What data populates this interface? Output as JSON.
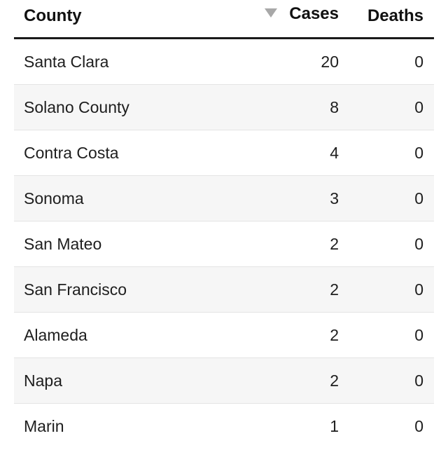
{
  "table": {
    "headers": {
      "county": "County",
      "cases": "Cases",
      "deaths": "Deaths"
    },
    "sort": {
      "column": "cases",
      "direction": "descending",
      "icon": "sort-desc-icon"
    },
    "rows": [
      {
        "county": "Santa Clara",
        "cases": "20",
        "deaths": "0"
      },
      {
        "county": "Solano County",
        "cases": "8",
        "deaths": "0"
      },
      {
        "county": "Contra Costa",
        "cases": "4",
        "deaths": "0"
      },
      {
        "county": "Sonoma",
        "cases": "3",
        "deaths": "0"
      },
      {
        "county": "San Mateo",
        "cases": "2",
        "deaths": "0"
      },
      {
        "county": "San Francisco",
        "cases": "2",
        "deaths": "0"
      },
      {
        "county": "Alameda",
        "cases": "2",
        "deaths": "0"
      },
      {
        "county": "Napa",
        "cases": "2",
        "deaths": "0"
      },
      {
        "county": "Marin",
        "cases": "1",
        "deaths": "0"
      }
    ]
  },
  "colors": {
    "header_rule": "#1a1a1a",
    "alt_row": "#f6f6f6",
    "row_divider": "#e4e4e4",
    "sort_icon": "#a8a8a8"
  }
}
